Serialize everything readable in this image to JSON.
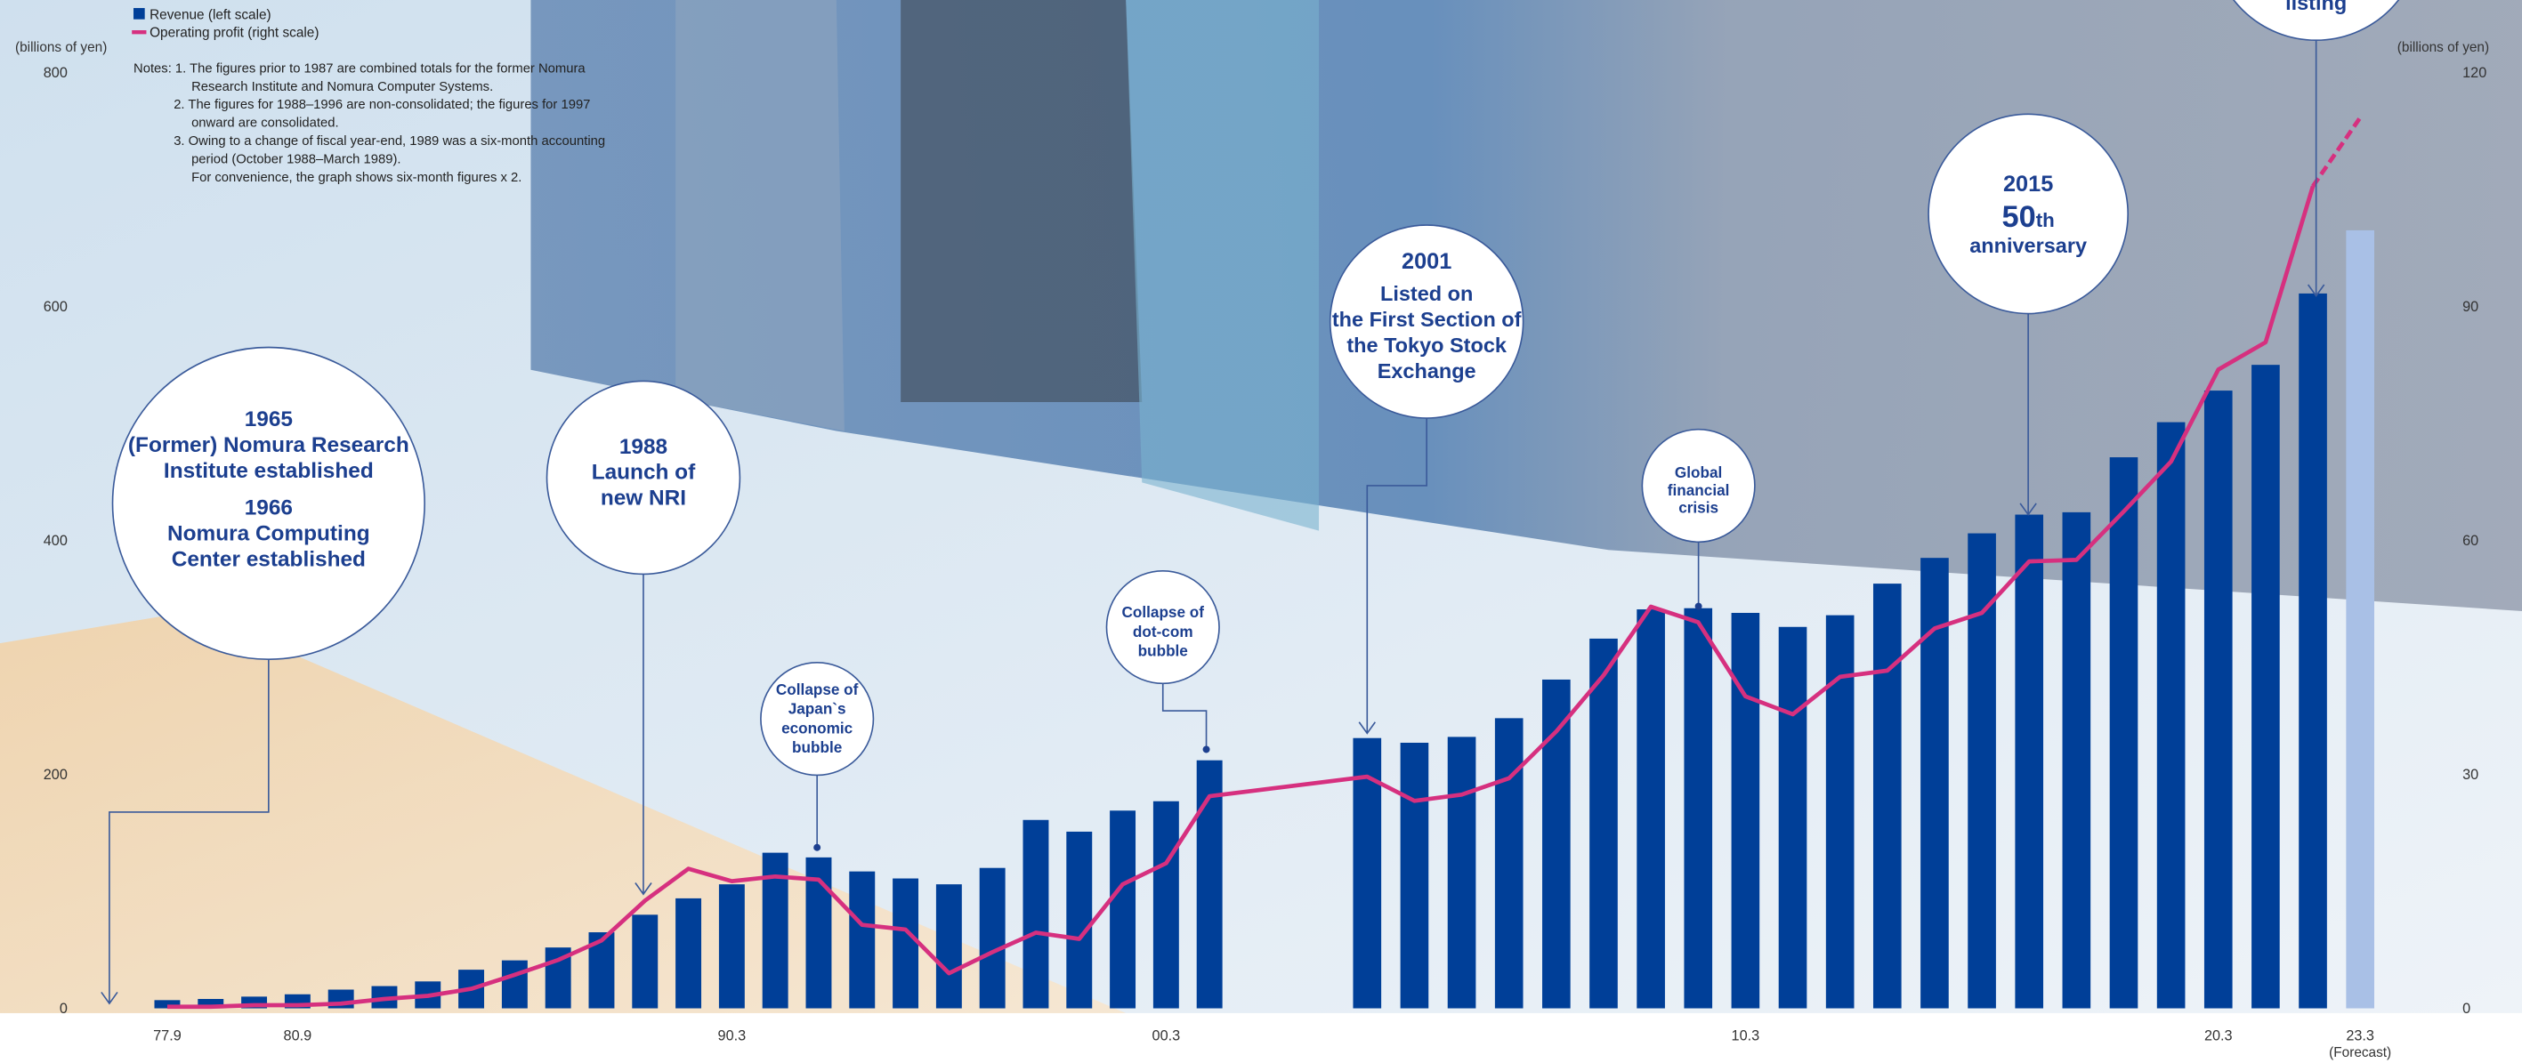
{
  "chart_data": {
    "type": "bar-line",
    "categories": [
      "77.9",
      null,
      null,
      "80.9",
      null,
      null,
      null,
      null,
      null,
      null,
      null,
      null,
      null,
      "90.3",
      null,
      null,
      null,
      null,
      null,
      null,
      null,
      null,
      null,
      "00.3",
      null,
      null,
      null,
      null,
      null,
      null,
      null,
      null,
      null,
      "10.3",
      null,
      null,
      null,
      null,
      null,
      null,
      null,
      null,
      null,
      "20.3",
      null,
      null,
      "23.3"
    ],
    "forecast": {
      "label": "(Forecast)",
      "color": "#a9c0e6"
    },
    "series": [
      {
        "name": "Revenue (left scale)",
        "type": "bar",
        "color": "#003f98",
        "values": [
          7,
          8,
          10,
          12,
          16,
          19,
          23,
          33,
          41,
          52,
          65,
          80,
          94,
          106,
          133,
          129,
          117,
          111,
          106,
          120,
          161,
          151,
          169,
          177,
          212,
          231,
          227,
          232,
          248,
          281,
          316,
          341,
          342,
          338,
          326,
          336,
          363,
          385,
          406,
          422,
          424,
          471,
          501,
          528,
          550,
          611,
          665
        ]
      },
      {
        "name": "Operating profit (right scale)",
        "type": "line",
        "axis": "y2",
        "color": "#d6307f",
        "values": [
          0.2,
          0.2,
          0.4,
          0.4,
          0.6,
          1.2,
          1.6,
          2.5,
          4.3,
          6.2,
          8.7,
          13.8,
          17.9,
          16.3,
          16.9,
          16.5,
          10.7,
          10.1,
          4.5,
          7.2,
          9.7,
          8.9,
          15.9,
          18.6,
          27.2,
          29.7,
          26.6,
          27.4,
          29.5,
          35.5,
          42.7,
          51.5,
          49.5,
          40.0,
          37.7,
          42.5,
          43.3,
          48.7,
          50.7,
          57.3,
          57.5,
          63.7,
          70.1,
          81.9,
          85.4,
          105.4,
          114.2
        ]
      }
    ],
    "ylabel": "(billions of yen)",
    "y2label": "(billions of yen)",
    "ylim": [
      0,
      800
    ],
    "yticks": [
      0,
      200,
      400,
      600,
      800
    ],
    "y2lim": [
      0,
      120
    ],
    "y2ticks": [
      0,
      30,
      60,
      90,
      120
    ],
    "grid": false,
    "legend": "top-left",
    "notes": [
      "Notes: 1. The figures prior to 1987 are combined totals for the former Nomura",
      "Research Institute and Nomura Computer Systems.",
      "2. The figures for 1988–1996 are non-consolidated; the figures for 1997",
      "onward are consolidated.",
      "3. Owing to a change of fiscal year-end, 1989 was a six-month accounting",
      "period (October 1988–March 1989).",
      "For convenience, the graph shows six-month figures x 2."
    ],
    "annotations": [
      {
        "lines": [
          "1965",
          "(Former) Nomura Research",
          "Institute established",
          "1966",
          "Nomura Computing",
          "Center established"
        ]
      },
      {
        "lines": [
          "1988",
          "Launch of",
          "new NRI"
        ]
      },
      {
        "lines": [
          "Collapse of",
          "Japan`s",
          "economic",
          "bubble"
        ]
      },
      {
        "lines": [
          "Collapse of",
          "dot-com",
          "bubble"
        ]
      },
      {
        "lines": [
          "2001",
          "Listed on",
          "the First Section of",
          "the Tokyo Stock",
          "Exchange"
        ]
      },
      {
        "lines": [
          "Global",
          "financial",
          "crisis"
        ]
      },
      {
        "lines": [
          "2015",
          "50th",
          "anniversary"
        ]
      },
      {
        "lines": [
          "listing"
        ]
      }
    ]
  }
}
